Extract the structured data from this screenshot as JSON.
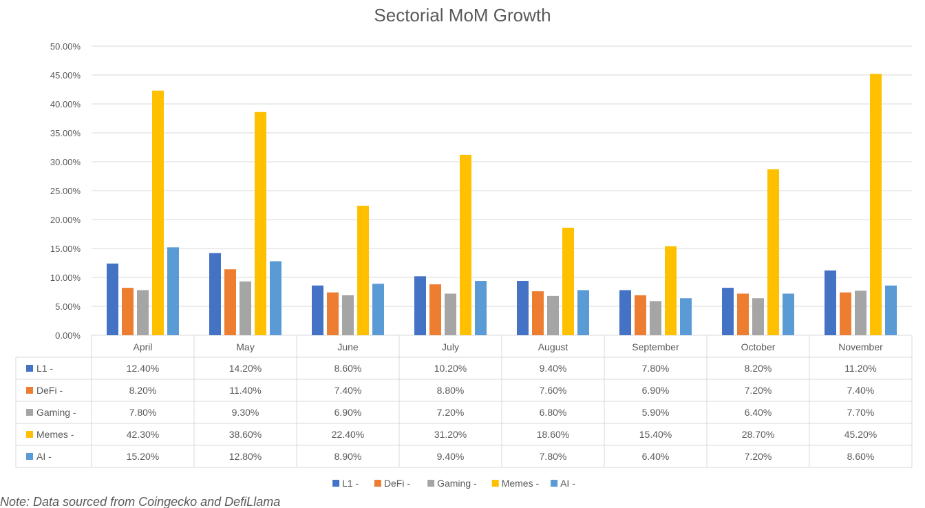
{
  "chart_data": {
    "type": "bar",
    "title": "Sectorial MoM Growth",
    "categories": [
      "April",
      "May",
      "June",
      "July",
      "August",
      "September",
      "October",
      "November"
    ],
    "y_ticks": [
      "0.00%",
      "5.00%",
      "10.00%",
      "15.00%",
      "20.00%",
      "25.00%",
      "30.00%",
      "35.00%",
      "40.00%",
      "45.00%",
      "50.00%"
    ],
    "ylim": [
      0,
      50
    ],
    "grid": true,
    "legend_position": "bottom",
    "data_table": true,
    "series": [
      {
        "name": "L1 -",
        "color": "#4472C4",
        "values": [
          12.4,
          14.2,
          8.6,
          10.2,
          9.4,
          7.8,
          8.2,
          11.2
        ],
        "labels": [
          "12.40%",
          "14.20%",
          "8.60%",
          "10.20%",
          "9.40%",
          "7.80%",
          "8.20%",
          "11.20%"
        ]
      },
      {
        "name": "DeFi -",
        "color": "#ED7D31",
        "values": [
          8.2,
          11.4,
          7.4,
          8.8,
          7.6,
          6.9,
          7.2,
          7.4
        ],
        "labels": [
          "8.20%",
          "11.40%",
          "7.40%",
          "8.80%",
          "7.60%",
          "6.90%",
          "7.20%",
          "7.40%"
        ]
      },
      {
        "name": "Gaming -",
        "color": "#A5A5A5",
        "values": [
          7.8,
          9.3,
          6.9,
          7.2,
          6.8,
          5.9,
          6.4,
          7.7
        ],
        "labels": [
          "7.80%",
          "9.30%",
          "6.90%",
          "7.20%",
          "6.80%",
          "5.90%",
          "6.40%",
          "7.70%"
        ]
      },
      {
        "name": "Memes -",
        "color": "#FFC000",
        "values": [
          42.3,
          38.6,
          22.4,
          31.2,
          18.6,
          15.4,
          28.7,
          45.2
        ],
        "labels": [
          "42.30%",
          "38.60%",
          "22.40%",
          "31.20%",
          "18.60%",
          "15.40%",
          "28.70%",
          "45.20%"
        ]
      },
      {
        "name": "AI -",
        "color": "#5B9BD5",
        "values": [
          15.2,
          12.8,
          8.9,
          9.4,
          7.8,
          6.4,
          7.2,
          8.6
        ],
        "labels": [
          "15.20%",
          "12.80%",
          "8.90%",
          "9.40%",
          "7.80%",
          "6.40%",
          "7.20%",
          "8.60%"
        ]
      }
    ]
  },
  "note": "Note: Data sourced from Coingecko and DefiLlama"
}
